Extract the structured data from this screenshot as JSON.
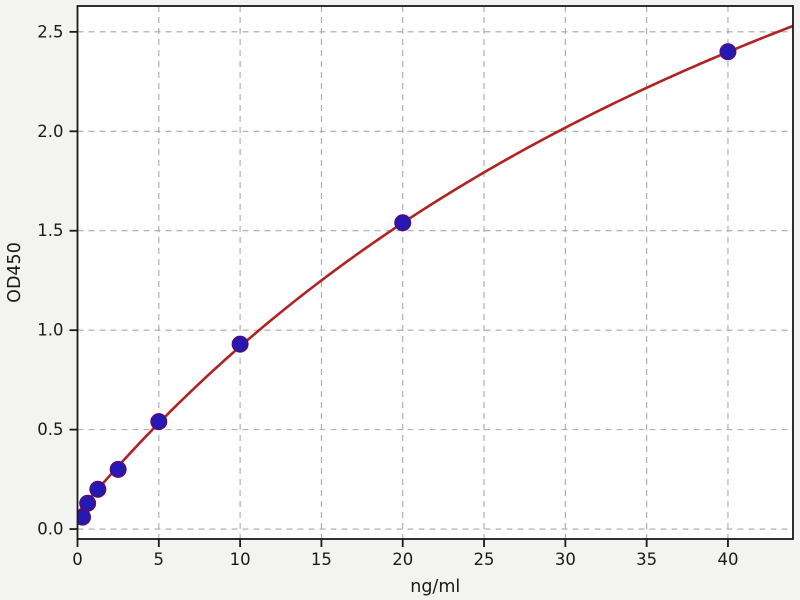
{
  "figure": {
    "background": "#f3f3f1",
    "plot_background": "#ffffff",
    "spine_color": "#1a1a1a",
    "grid_color": "#a9a9a9",
    "tick_label_color": "#1a1a1a"
  },
  "chart_data": {
    "type": "scatter",
    "title": "",
    "xlabel": "ng/ml",
    "ylabel": "OD450",
    "xlim": [
      0,
      44
    ],
    "ylim": [
      -0.05,
      2.63
    ],
    "x_ticks": [
      0,
      5,
      10,
      15,
      20,
      25,
      30,
      35,
      40
    ],
    "y_ticks": [
      0.0,
      0.5,
      1.0,
      1.5,
      2.0,
      2.5
    ],
    "grid": true,
    "legend": "none",
    "series": [
      {
        "name": "standard-points",
        "kind": "scatter",
        "x": [
          0.31,
          0.625,
          1.25,
          2.5,
          5,
          10,
          20,
          40
        ],
        "y": [
          0.06,
          0.13,
          0.2,
          0.3,
          0.54,
          0.93,
          1.54,
          2.4
        ],
        "marker": "circle",
        "fill": "#2519b5",
        "edge": "#4a0e85"
      },
      {
        "name": "fit-curve",
        "kind": "line",
        "color": "#b22222",
        "model": "y = y0 + Vmax * x / (K + x)",
        "params": {
          "y0": 0.08,
          "Vmax": 5.64,
          "K": 57.3
        },
        "x_range": [
          0,
          44
        ]
      }
    ]
  }
}
